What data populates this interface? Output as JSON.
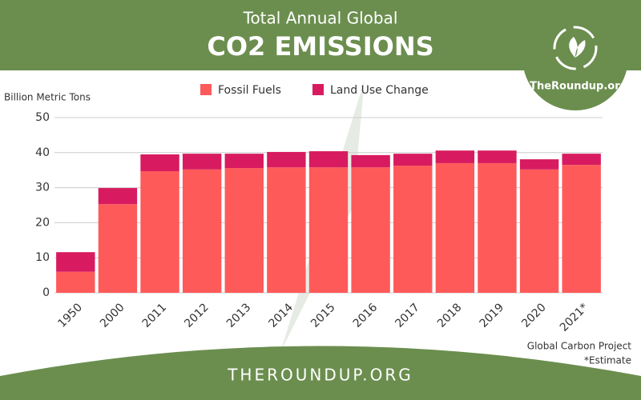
{
  "chart_data": {
    "type": "stacked_bar",
    "title": "Total Annual Global",
    "subtitle": "CO2 EMISSIONS",
    "ylabel": "Billion Metric Tons",
    "source": "Global Carbon Project",
    "note": "*Estimate",
    "categories": [
      "1950",
      "2000",
      "2011",
      "2012",
      "2013",
      "2014",
      "2015",
      "2016",
      "2017",
      "2018",
      "2019",
      "2020",
      "2021*"
    ],
    "series": [
      {
        "name": "Fossil Fuels",
        "color": "#fe5a5a",
        "values": [
          6,
          25.3,
          34.7,
          35.2,
          35.6,
          35.8,
          35.8,
          35.8,
          36.3,
          37.0,
          37.0,
          35.2,
          36.5
        ]
      },
      {
        "name": "Land Use Change",
        "color": "#d81b60",
        "values": [
          5.6,
          4.6,
          4.8,
          4.5,
          4.1,
          4.4,
          4.6,
          3.5,
          3.4,
          3.6,
          3.6,
          2.9,
          3.2
        ]
      }
    ],
    "ylim": [
      0,
      50
    ],
    "yticks": [
      0,
      10,
      20,
      30,
      40,
      50
    ],
    "grid": true
  },
  "branding": {
    "logo": "TheRoundup.org",
    "footer": "THEROUNDUP.ORG"
  }
}
